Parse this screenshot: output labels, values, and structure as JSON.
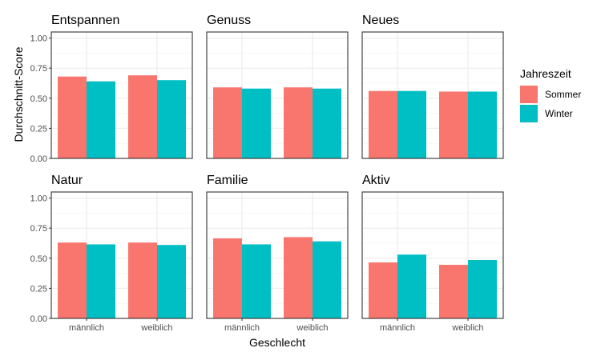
{
  "chart_data": {
    "type": "bar",
    "layout": "faceted-grouped",
    "xlabel": "Geschlecht",
    "ylabel": "Durchschnitt-Score",
    "ylim": [
      0,
      1.05
    ],
    "yticks": [
      "0.00",
      "0.25",
      "0.50",
      "0.75",
      "1.00"
    ],
    "ytick_values": [
      0,
      0.25,
      0.5,
      0.75,
      1.0
    ],
    "categories": [
      "männlich",
      "weiblich"
    ],
    "grid": true,
    "legend": {
      "title": "Jahreszeit",
      "position": "right",
      "entries": [
        {
          "label": "Sommer",
          "color": "#F8766D"
        },
        {
          "label": "Winter",
          "color": "#00BFC4"
        }
      ]
    },
    "panels": [
      {
        "title": "Entspannen",
        "series": [
          {
            "name": "Sommer",
            "values": [
              0.68,
              0.69
            ]
          },
          {
            "name": "Winter",
            "values": [
              0.64,
              0.65
            ]
          }
        ]
      },
      {
        "title": "Genuss",
        "series": [
          {
            "name": "Sommer",
            "values": [
              0.59,
              0.59
            ]
          },
          {
            "name": "Winter",
            "values": [
              0.58,
              0.58
            ]
          }
        ]
      },
      {
        "title": "Neues",
        "series": [
          {
            "name": "Sommer",
            "values": [
              0.56,
              0.555
            ]
          },
          {
            "name": "Winter",
            "values": [
              0.56,
              0.555
            ]
          }
        ]
      },
      {
        "title": "Natur",
        "series": [
          {
            "name": "Sommer",
            "values": [
              0.63,
              0.63
            ]
          },
          {
            "name": "Winter",
            "values": [
              0.615,
              0.61
            ]
          }
        ]
      },
      {
        "title": "Familie",
        "series": [
          {
            "name": "Sommer",
            "values": [
              0.665,
              0.675
            ]
          },
          {
            "name": "Winter",
            "values": [
              0.615,
              0.64
            ]
          }
        ]
      },
      {
        "title": "Aktiv",
        "series": [
          {
            "name": "Sommer",
            "values": [
              0.465,
              0.445
            ]
          },
          {
            "name": "Winter",
            "values": [
              0.53,
              0.485
            ]
          }
        ]
      }
    ]
  }
}
